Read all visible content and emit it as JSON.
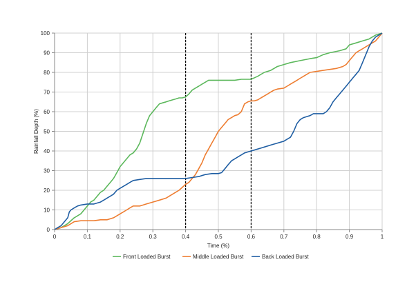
{
  "colors": {
    "front": "#5cb85c",
    "middle": "#ee7d31",
    "back": "#1f5ea3",
    "grid": "#d0d0d0",
    "axis": "#888888",
    "marker_line": "#000000"
  },
  "chart_data": {
    "type": "line",
    "title": "",
    "xlabel": "Time (%)",
    "ylabel": "Rainfall Depth (%)",
    "xlim": [
      0,
      1
    ],
    "ylim": [
      0,
      100
    ],
    "x_ticks": [
      0,
      0.1,
      0.2,
      0.3,
      0.4,
      0.5,
      0.6,
      0.7,
      0.8,
      0.9,
      1
    ],
    "x_tick_labels": [
      "0",
      "0.1",
      "0.2",
      "0.3",
      "0.4",
      "0.5",
      "0.6",
      "0.7",
      "0.8",
      "0.9",
      "1"
    ],
    "y_ticks": [
      0,
      10,
      20,
      30,
      40,
      50,
      60,
      70,
      80,
      90,
      100
    ],
    "y_tick_labels": [
      "0",
      "10",
      "20",
      "30",
      "40",
      "50",
      "60",
      "70",
      "80",
      "90",
      "100"
    ],
    "grid": true,
    "legend_position": "bottom",
    "reference_lines_x": [
      0.4,
      0.6
    ],
    "series": [
      {
        "name": "Front Loaded Burst",
        "color_key": "front",
        "points": [
          [
            0,
            0
          ],
          [
            0.02,
            1
          ],
          [
            0.04,
            3
          ],
          [
            0.06,
            6
          ],
          [
            0.08,
            8
          ],
          [
            0.09,
            10
          ],
          [
            0.1,
            12
          ],
          [
            0.11,
            14
          ],
          [
            0.12,
            15
          ],
          [
            0.13,
            17
          ],
          [
            0.14,
            19
          ],
          [
            0.15,
            20
          ],
          [
            0.16,
            22
          ],
          [
            0.17,
            24
          ],
          [
            0.18,
            26
          ],
          [
            0.19,
            29
          ],
          [
            0.2,
            32
          ],
          [
            0.21,
            34
          ],
          [
            0.22,
            36
          ],
          [
            0.23,
            38
          ],
          [
            0.24,
            39
          ],
          [
            0.25,
            41
          ],
          [
            0.26,
            44
          ],
          [
            0.27,
            49
          ],
          [
            0.28,
            54
          ],
          [
            0.29,
            58
          ],
          [
            0.3,
            60
          ],
          [
            0.31,
            62
          ],
          [
            0.32,
            64
          ],
          [
            0.33,
            64.5
          ],
          [
            0.34,
            65
          ],
          [
            0.35,
            65.5
          ],
          [
            0.36,
            66
          ],
          [
            0.37,
            66.5
          ],
          [
            0.38,
            67
          ],
          [
            0.39,
            67
          ],
          [
            0.4,
            67.5
          ],
          [
            0.41,
            69
          ],
          [
            0.42,
            71
          ],
          [
            0.43,
            72
          ],
          [
            0.44,
            73
          ],
          [
            0.45,
            74
          ],
          [
            0.46,
            75
          ],
          [
            0.47,
            76
          ],
          [
            0.5,
            76
          ],
          [
            0.55,
            76
          ],
          [
            0.57,
            76.5
          ],
          [
            0.6,
            76.5
          ],
          [
            0.62,
            78
          ],
          [
            0.64,
            80
          ],
          [
            0.66,
            81
          ],
          [
            0.68,
            83
          ],
          [
            0.7,
            84
          ],
          [
            0.72,
            85
          ],
          [
            0.75,
            86
          ],
          [
            0.78,
            87
          ],
          [
            0.8,
            87.5
          ],
          [
            0.82,
            89
          ],
          [
            0.84,
            90
          ],
          [
            0.87,
            91
          ],
          [
            0.89,
            92
          ],
          [
            0.9,
            94
          ],
          [
            0.92,
            95
          ],
          [
            0.94,
            96
          ],
          [
            0.96,
            97
          ],
          [
            0.98,
            99
          ],
          [
            1,
            100
          ]
        ]
      },
      {
        "name": "Middle Loaded Burst",
        "color_key": "middle",
        "points": [
          [
            0,
            0
          ],
          [
            0.02,
            1
          ],
          [
            0.04,
            2
          ],
          [
            0.05,
            3
          ],
          [
            0.06,
            4
          ],
          [
            0.08,
            4.5
          ],
          [
            0.1,
            4.5
          ],
          [
            0.12,
            4.5
          ],
          [
            0.14,
            5
          ],
          [
            0.16,
            5
          ],
          [
            0.18,
            6
          ],
          [
            0.19,
            7
          ],
          [
            0.2,
            8
          ],
          [
            0.21,
            9
          ],
          [
            0.22,
            10
          ],
          [
            0.23,
            11
          ],
          [
            0.24,
            12
          ],
          [
            0.26,
            12
          ],
          [
            0.27,
            12.5
          ],
          [
            0.28,
            13
          ],
          [
            0.3,
            14
          ],
          [
            0.32,
            15
          ],
          [
            0.34,
            16
          ],
          [
            0.36,
            18
          ],
          [
            0.38,
            20
          ],
          [
            0.4,
            23
          ],
          [
            0.41,
            24
          ],
          [
            0.42,
            26
          ],
          [
            0.43,
            28
          ],
          [
            0.44,
            31
          ],
          [
            0.45,
            34
          ],
          [
            0.46,
            38
          ],
          [
            0.47,
            41
          ],
          [
            0.48,
            44
          ],
          [
            0.49,
            47
          ],
          [
            0.5,
            50
          ],
          [
            0.51,
            52
          ],
          [
            0.52,
            54
          ],
          [
            0.53,
            56
          ],
          [
            0.54,
            57
          ],
          [
            0.55,
            58
          ],
          [
            0.56,
            58.5
          ],
          [
            0.57,
            60
          ],
          [
            0.58,
            64
          ],
          [
            0.59,
            65
          ],
          [
            0.6,
            65.5
          ],
          [
            0.61,
            65.5
          ],
          [
            0.62,
            66
          ],
          [
            0.63,
            67
          ],
          [
            0.64,
            68
          ],
          [
            0.65,
            69
          ],
          [
            0.66,
            70
          ],
          [
            0.67,
            71
          ],
          [
            0.68,
            71.5
          ],
          [
            0.7,
            72
          ],
          [
            0.71,
            73
          ],
          [
            0.72,
            74
          ],
          [
            0.73,
            75
          ],
          [
            0.74,
            76
          ],
          [
            0.75,
            77
          ],
          [
            0.76,
            78
          ],
          [
            0.77,
            79
          ],
          [
            0.78,
            80
          ],
          [
            0.8,
            80.5
          ],
          [
            0.82,
            81
          ],
          [
            0.84,
            81.5
          ],
          [
            0.86,
            82
          ],
          [
            0.88,
            83
          ],
          [
            0.89,
            84
          ],
          [
            0.9,
            86
          ],
          [
            0.91,
            88
          ],
          [
            0.92,
            90
          ],
          [
            0.93,
            91
          ],
          [
            0.94,
            92
          ],
          [
            0.95,
            93
          ],
          [
            0.96,
            94
          ],
          [
            0.98,
            96
          ],
          [
            1,
            100
          ]
        ]
      },
      {
        "name": "Back Loaded Burst",
        "color_key": "back",
        "points": [
          [
            0,
            0
          ],
          [
            0.01,
            1
          ],
          [
            0.02,
            2
          ],
          [
            0.03,
            4
          ],
          [
            0.04,
            6
          ],
          [
            0.045,
            9
          ],
          [
            0.05,
            10
          ],
          [
            0.06,
            11
          ],
          [
            0.07,
            12
          ],
          [
            0.08,
            12.5
          ],
          [
            0.1,
            13
          ],
          [
            0.12,
            13
          ],
          [
            0.13,
            13.5
          ],
          [
            0.14,
            14
          ],
          [
            0.15,
            15
          ],
          [
            0.16,
            16
          ],
          [
            0.17,
            17
          ],
          [
            0.18,
            18
          ],
          [
            0.19,
            20
          ],
          [
            0.2,
            21
          ],
          [
            0.21,
            22
          ],
          [
            0.22,
            23
          ],
          [
            0.23,
            24
          ],
          [
            0.24,
            25
          ],
          [
            0.26,
            25.5
          ],
          [
            0.28,
            26
          ],
          [
            0.3,
            26
          ],
          [
            0.35,
            26
          ],
          [
            0.4,
            26
          ],
          [
            0.42,
            26.5
          ],
          [
            0.44,
            27
          ],
          [
            0.46,
            28
          ],
          [
            0.48,
            28.5
          ],
          [
            0.5,
            28.5
          ],
          [
            0.51,
            29
          ],
          [
            0.52,
            31
          ],
          [
            0.53,
            33
          ],
          [
            0.54,
            35
          ],
          [
            0.55,
            36
          ],
          [
            0.56,
            37
          ],
          [
            0.57,
            38
          ],
          [
            0.58,
            39
          ],
          [
            0.59,
            39.5
          ],
          [
            0.6,
            40
          ],
          [
            0.62,
            41
          ],
          [
            0.64,
            42
          ],
          [
            0.66,
            43
          ],
          [
            0.68,
            44
          ],
          [
            0.7,
            45
          ],
          [
            0.71,
            46
          ],
          [
            0.72,
            47
          ],
          [
            0.73,
            50
          ],
          [
            0.74,
            54
          ],
          [
            0.75,
            56
          ],
          [
            0.76,
            57
          ],
          [
            0.77,
            57.5
          ],
          [
            0.78,
            58
          ],
          [
            0.79,
            59
          ],
          [
            0.8,
            59
          ],
          [
            0.82,
            59
          ],
          [
            0.83,
            60
          ],
          [
            0.84,
            62
          ],
          [
            0.85,
            65
          ],
          [
            0.86,
            67
          ],
          [
            0.87,
            69
          ],
          [
            0.88,
            71
          ],
          [
            0.89,
            73
          ],
          [
            0.9,
            75
          ],
          [
            0.91,
            77
          ],
          [
            0.92,
            79
          ],
          [
            0.93,
            81
          ],
          [
            0.94,
            85
          ],
          [
            0.95,
            89
          ],
          [
            0.96,
            93
          ],
          [
            0.97,
            96
          ],
          [
            0.98,
            98
          ],
          [
            1,
            100
          ]
        ]
      }
    ]
  }
}
